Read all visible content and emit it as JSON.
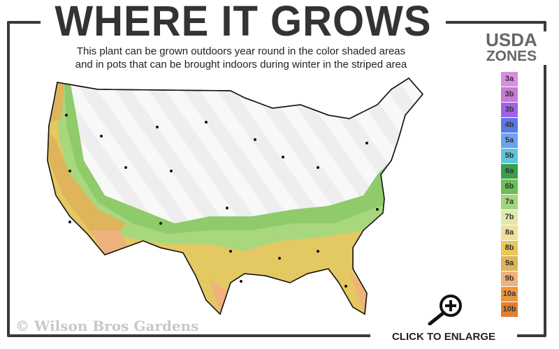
{
  "header": {
    "title": "WHERE IT GROWS",
    "subtitle_line1": "This plant can be grown outdoors year round in the color shaded areas",
    "subtitle_line2": "and in pots that can be brought indoors during winter in the striped area"
  },
  "legend": {
    "title_line1": "USDA",
    "title_line2": "ZONES",
    "zones": [
      {
        "label": "3a",
        "color": "#d98ee0"
      },
      {
        "label": "3b",
        "color": "#c47ad6"
      },
      {
        "label": "3b",
        "color": "#a262e6"
      },
      {
        "label": "4b",
        "color": "#5a78e6"
      },
      {
        "label": "5a",
        "color": "#6ca2f0"
      },
      {
        "label": "5b",
        "color": "#5cc6dc"
      },
      {
        "label": "6a",
        "color": "#3a9e4a"
      },
      {
        "label": "6b",
        "color": "#6cbe58"
      },
      {
        "label": "7a",
        "color": "#a2d67a"
      },
      {
        "label": "7b",
        "color": "#dfe9ad"
      },
      {
        "label": "8a",
        "color": "#ede09c"
      },
      {
        "label": "8b",
        "color": "#e9c75a"
      },
      {
        "label": "9a",
        "color": "#ddb657"
      },
      {
        "label": "9b",
        "color": "#f0b27c"
      },
      {
        "label": "10a",
        "color": "#eb9642"
      },
      {
        "label": "10b",
        "color": "#e0802e"
      }
    ]
  },
  "watermark": "© Wilson Bros Gardens",
  "enlarge": {
    "label": "CLICK TO ENLARGE",
    "icon": "zoom-in-magnifier-icon"
  }
}
